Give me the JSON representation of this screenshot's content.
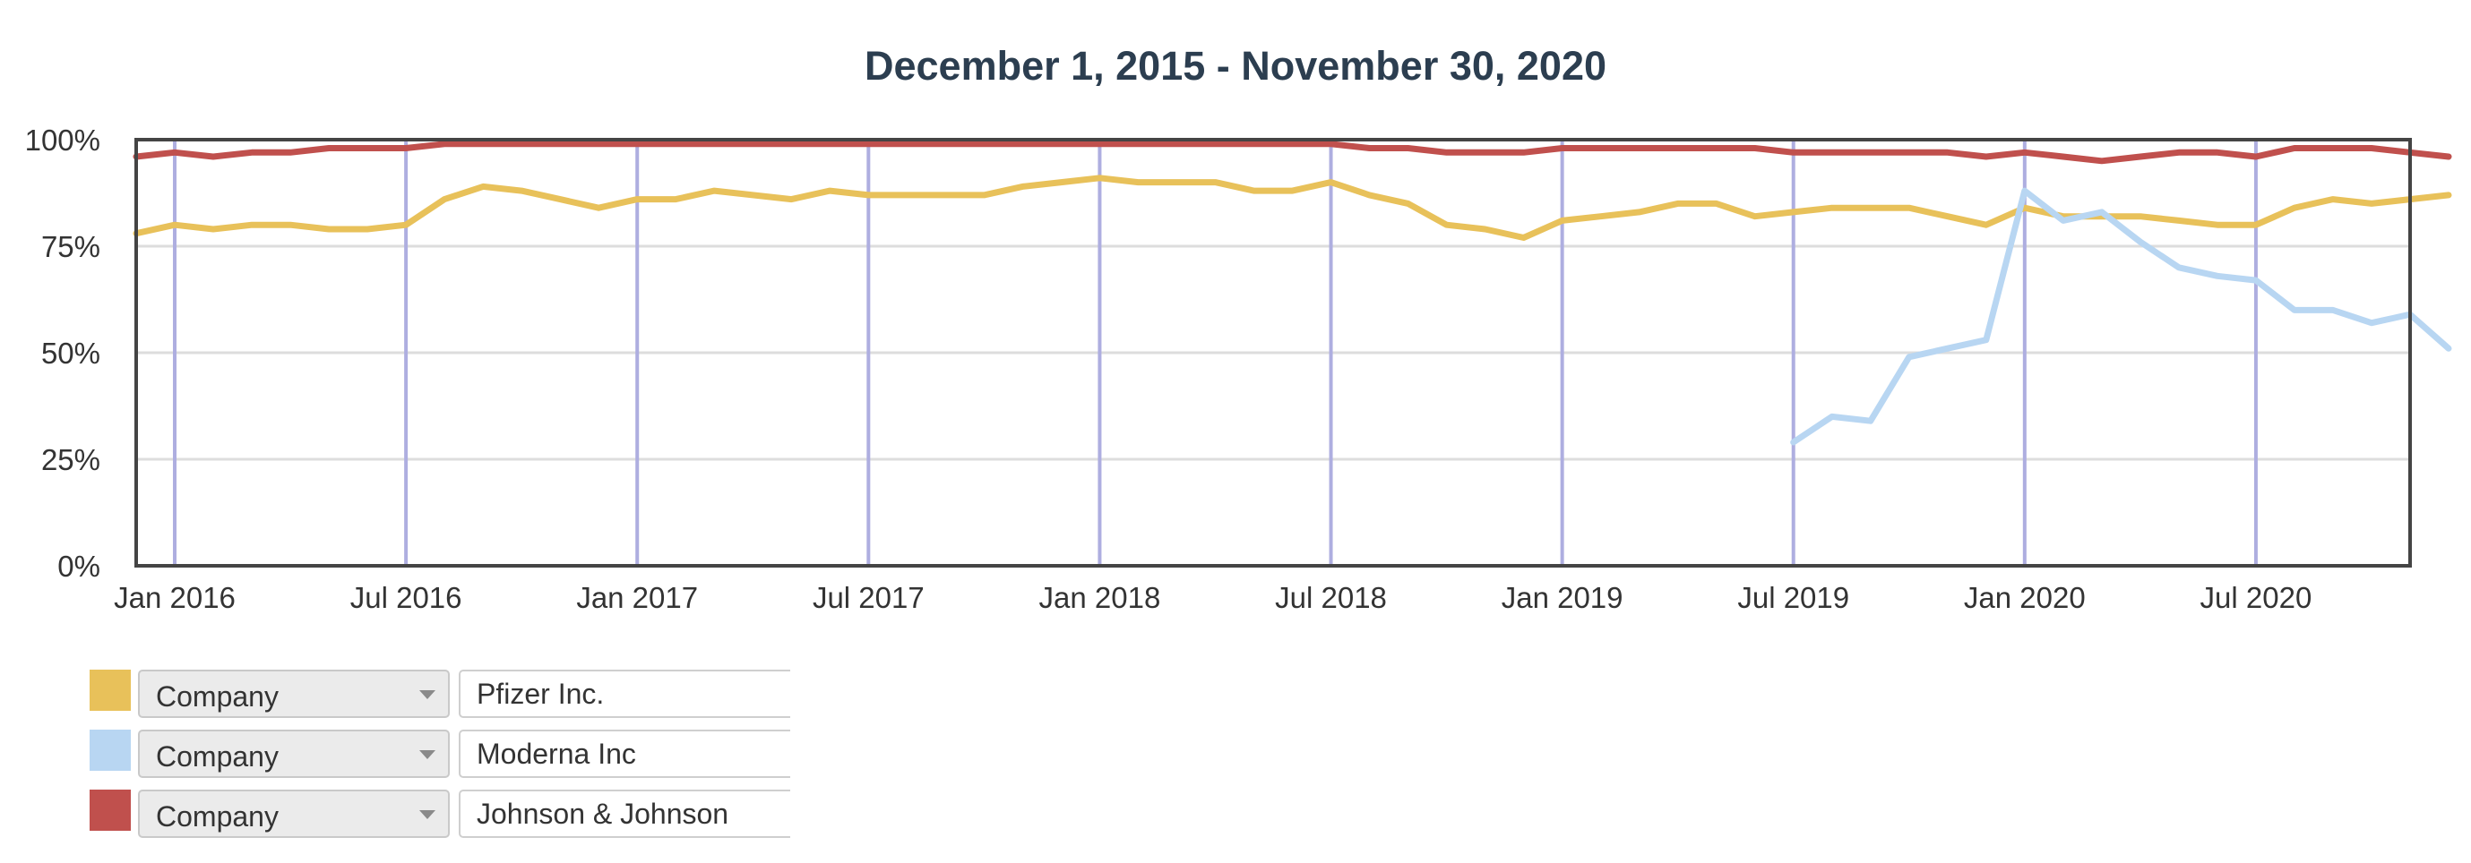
{
  "chart_data": {
    "type": "line",
    "title": "December 1, 2015 - November 30, 2020",
    "x_start": "2015-12",
    "x_end": "2020-11",
    "x_ticks": [
      "Jan 2016",
      "Jul 2016",
      "Jan 2017",
      "Jul 2017",
      "Jan 2018",
      "Jul 2018",
      "Jan 2019",
      "Jul 2019",
      "Jan 2020",
      "Jul 2020"
    ],
    "x_tick_dates": [
      "2016-01",
      "2016-07",
      "2017-01",
      "2017-07",
      "2018-01",
      "2018-07",
      "2019-01",
      "2019-07",
      "2020-01",
      "2020-07"
    ],
    "y_ticks": [
      "0%",
      "25%",
      "50%",
      "75%",
      "100%"
    ],
    "y_tick_values": [
      0,
      25,
      50,
      75,
      100
    ],
    "ylim": [
      0,
      100
    ],
    "grid": {
      "horizontal": true,
      "vertical_at_ticks": true
    },
    "series": [
      {
        "name": "Pfizer Inc.",
        "color": "#e8c15a",
        "start": "2015-12",
        "values": [
          78,
          80,
          79,
          80,
          80,
          79,
          79,
          80,
          86,
          89,
          88,
          86,
          84,
          86,
          86,
          88,
          87,
          86,
          88,
          87,
          87,
          87,
          87,
          89,
          90,
          91,
          90,
          90,
          90,
          88,
          88,
          90,
          87,
          85,
          80,
          79,
          77,
          81,
          82,
          83,
          85,
          85,
          82,
          83,
          84,
          84,
          84,
          82,
          80,
          84,
          82,
          82,
          82,
          81,
          80,
          80,
          84,
          86,
          85,
          86,
          87
        ]
      },
      {
        "name": "Moderna Inc",
        "color": "#b8d6f2",
        "start": "2019-07",
        "values": [
          29,
          35,
          34,
          49,
          51,
          53,
          88,
          81,
          83,
          76,
          70,
          68,
          67,
          60,
          60,
          57,
          59,
          51
        ]
      },
      {
        "name": "Johnson & Johnson",
        "color": "#c0504d",
        "start": "2015-12",
        "values": [
          96,
          97,
          96,
          97,
          97,
          98,
          98,
          98,
          99,
          99,
          99,
          99,
          99,
          99,
          99,
          99,
          99,
          99,
          99,
          99,
          99,
          99,
          99,
          99,
          99,
          99,
          99,
          99,
          99,
          99,
          99,
          99,
          98,
          98,
          97,
          97,
          97,
          98,
          98,
          98,
          98,
          98,
          98,
          97,
          97,
          97,
          97,
          97,
          96,
          97,
          96,
          95,
          96,
          97,
          97,
          96,
          98,
          98,
          98,
          97,
          96
        ]
      }
    ]
  },
  "legend": {
    "rows": [
      {
        "swatch_color": "#e8c15a",
        "field_label": "Company",
        "value": "Pfizer Inc."
      },
      {
        "swatch_color": "#b8d6f2",
        "field_label": "Company",
        "value": "Moderna Inc"
      },
      {
        "swatch_color": "#c0504d",
        "field_label": "Company",
        "value": "Johnson & Johnson"
      }
    ]
  },
  "icons": {
    "dropdown": "chevron-down-icon"
  }
}
